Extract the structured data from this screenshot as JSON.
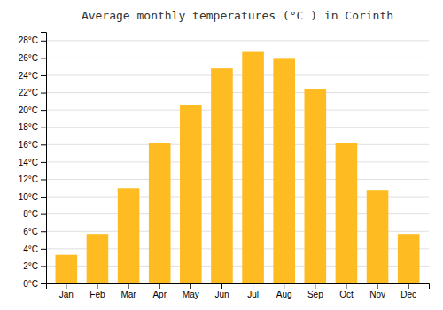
{
  "chart_data": {
    "type": "bar",
    "title": "Average monthly temperatures (°C ) in Corinth",
    "categories": [
      "Jan",
      "Feb",
      "Mar",
      "Apr",
      "May",
      "Jun",
      "Jul",
      "Aug",
      "Sep",
      "Oct",
      "Nov",
      "Dec"
    ],
    "values": [
      3.3,
      5.7,
      11.0,
      16.2,
      20.6,
      24.8,
      26.7,
      25.9,
      22.4,
      16.2,
      10.7,
      5.7
    ],
    "color": "#FFBB22",
    "ylim": [
      0,
      29
    ],
    "yticks": [
      {
        "value": 0,
        "label": "0°C"
      },
      {
        "value": 2,
        "label": "2°C"
      },
      {
        "value": 4,
        "label": "4°C"
      },
      {
        "value": 6,
        "label": "6°C"
      },
      {
        "value": 8,
        "label": "8°C"
      },
      {
        "value": 10,
        "label": "10°C"
      },
      {
        "value": 12,
        "label": "12°C"
      },
      {
        "value": 14,
        "label": "14°C"
      },
      {
        "value": 16,
        "label": "16°C"
      },
      {
        "value": 18,
        "label": "18°C"
      },
      {
        "value": 20,
        "label": "20°C"
      },
      {
        "value": 22,
        "label": "22°C"
      },
      {
        "value": 24,
        "label": "24°C"
      },
      {
        "value": 26,
        "label": "26°C"
      },
      {
        "value": 28,
        "label": "28°C"
      }
    ],
    "grid": true
  }
}
